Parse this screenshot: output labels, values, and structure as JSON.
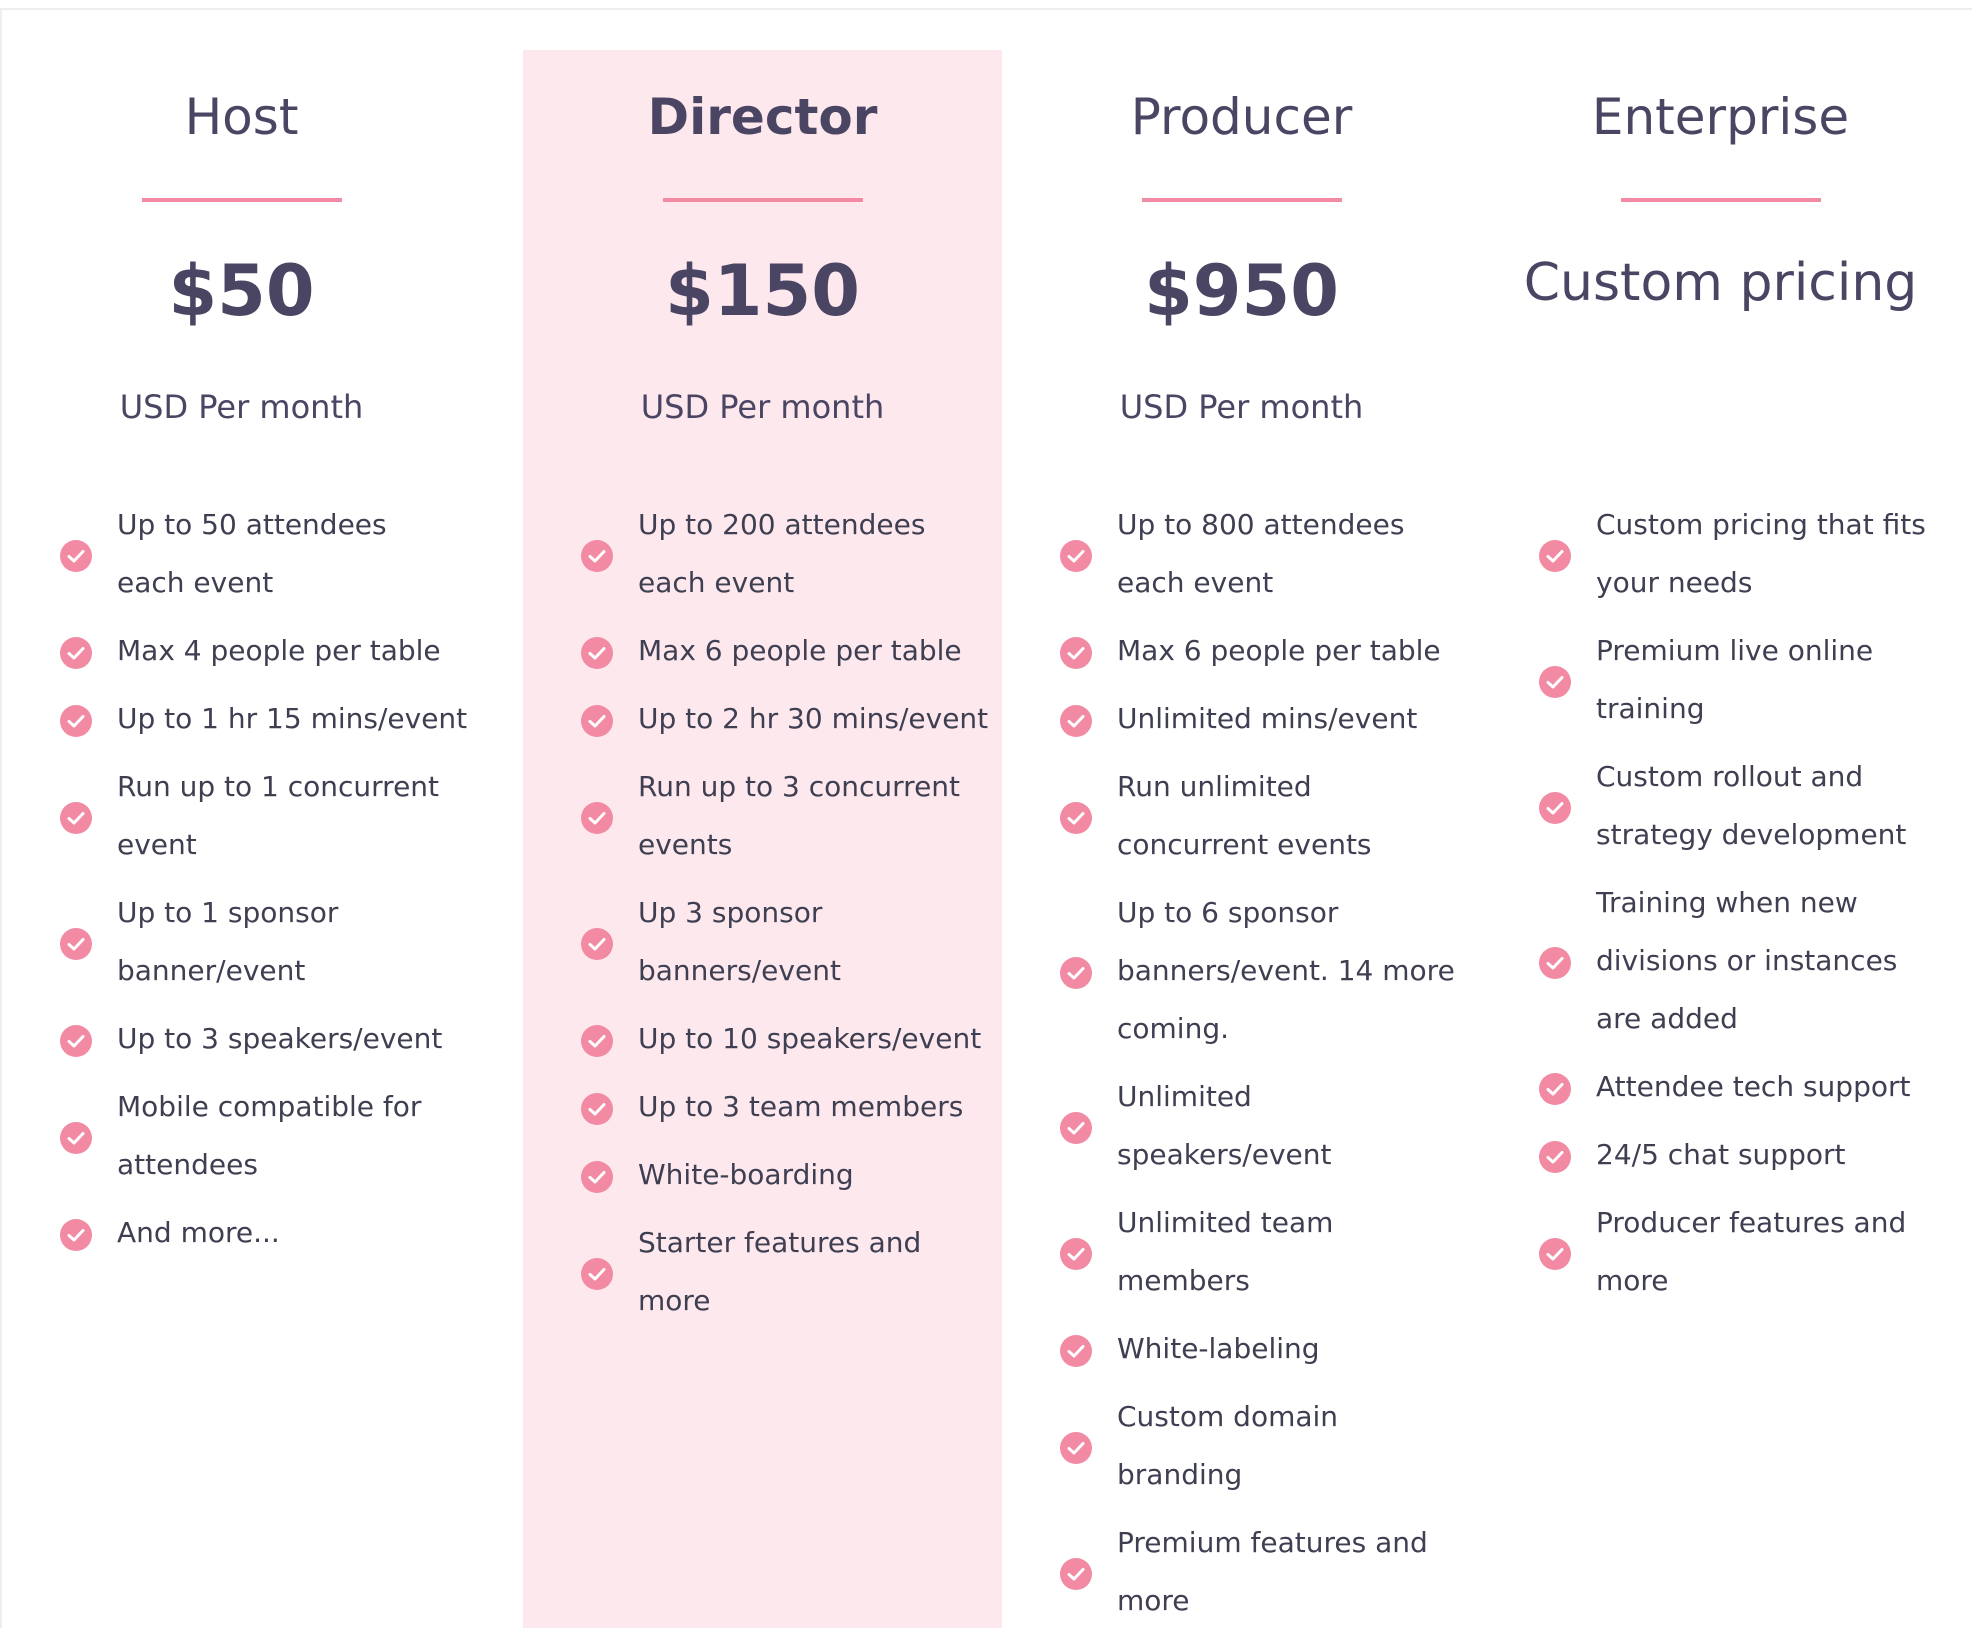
{
  "accent_color": "#f28aa4",
  "highlight_background": "#fde8ee",
  "text_color": "#4a4563",
  "check_icon": "check-circle-icon",
  "plans": [
    {
      "name": "Host",
      "price": "$50",
      "period": "USD Per month",
      "featured": false,
      "features": [
        "Up to 50 attendees\neach event",
        "Max 4 people per table",
        "Up to 1 hr 15 mins/event",
        "Run up to 1 concurrent\nevent",
        "Up to 1 sponsor\nbanner/event",
        "Up to 3 speakers/event",
        "Mobile compatible for\nattendees",
        "And more..."
      ]
    },
    {
      "name": "Director",
      "price": "$150",
      "period": "USD Per month",
      "featured": true,
      "features": [
        "Up to 200 attendees\neach event",
        "Max 6 people per table",
        "Up to 2 hr 30 mins/event",
        "Run up to 3 concurrent\nevents",
        "Up 3 sponsor\nbanners/event",
        "Up to 10 speakers/event",
        "Up to 3 team members",
        "White-boarding",
        "Starter features and\nmore"
      ]
    },
    {
      "name": "Producer",
      "price": "$950",
      "period": "USD Per month",
      "featured": false,
      "features": [
        "Up to 800 attendees\neach event",
        "Max 6 people per table",
        "Unlimited mins/event",
        "Run unlimited\nconcurrent events",
        "Up to 6 sponsor\nbanners/event. 14 more\ncoming.",
        "Unlimited\nspeakers/event",
        "Unlimited team\nmembers",
        "White-labeling",
        "Custom domain\nbranding",
        "Premium features and\nmore"
      ]
    },
    {
      "name": "Enterprise",
      "price": "Custom pricing",
      "period": "",
      "featured": false,
      "features": [
        "Custom pricing that fits\nyour needs",
        "Premium live online\ntraining",
        "Custom rollout and\nstrategy development",
        "Training when new\ndivisions or instances\nare added",
        "Attendee tech support",
        "24/5 chat support",
        "Producer features and\nmore"
      ]
    }
  ]
}
